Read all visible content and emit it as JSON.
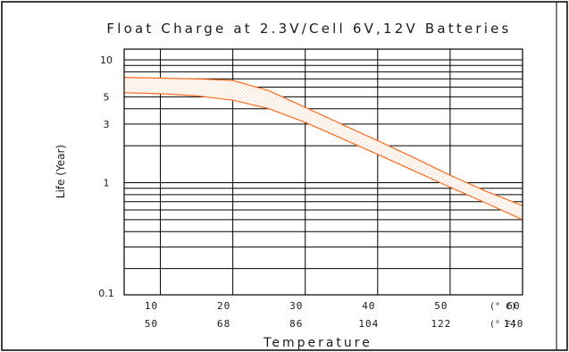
{
  "chart_data": {
    "type": "area",
    "title": "Float Charge at 2.3V/Cell  6V,12V Batteries",
    "xlabel": "Temperature",
    "ylabel": "Life (Year)",
    "y_scale": "log",
    "ylim": [
      0.1,
      10
    ],
    "y_ticks": [
      "10",
      "5",
      "3",
      "1",
      "0.1"
    ],
    "y_tick_values": [
      10,
      5,
      3,
      1,
      0.1
    ],
    "x_ticks_celsius": [
      "10",
      "20",
      "30",
      "40",
      "50",
      "60"
    ],
    "x_ticks_fahrenheit": [
      "50",
      "68",
      "86",
      "104",
      "122",
      "140"
    ],
    "x_tick_values": [
      10,
      20,
      30,
      40,
      50,
      60
    ],
    "unit_celsius": "(° C)",
    "unit_fahrenheit": "(° F)",
    "xlim": [
      5,
      60
    ],
    "grid": true,
    "band_color": "#ff6a1a",
    "band_fill": "#ffd0b0",
    "series": [
      {
        "x": [
          5,
          10,
          15,
          20,
          25,
          30,
          35,
          40,
          45,
          50,
          55,
          60
        ],
        "values": [
          7.2,
          7.1,
          7.0,
          6.8,
          5.6,
          4.1,
          3.0,
          2.2,
          1.6,
          1.15,
          0.85,
          0.65
        ]
      },
      {
        "x": [
          5,
          10,
          15,
          20,
          25,
          30,
          35,
          40,
          45,
          50,
          55,
          60
        ],
        "values": [
          5.4,
          5.3,
          5.1,
          4.7,
          4.0,
          3.1,
          2.3,
          1.7,
          1.25,
          0.92,
          0.68,
          0.5
        ]
      }
    ]
  }
}
